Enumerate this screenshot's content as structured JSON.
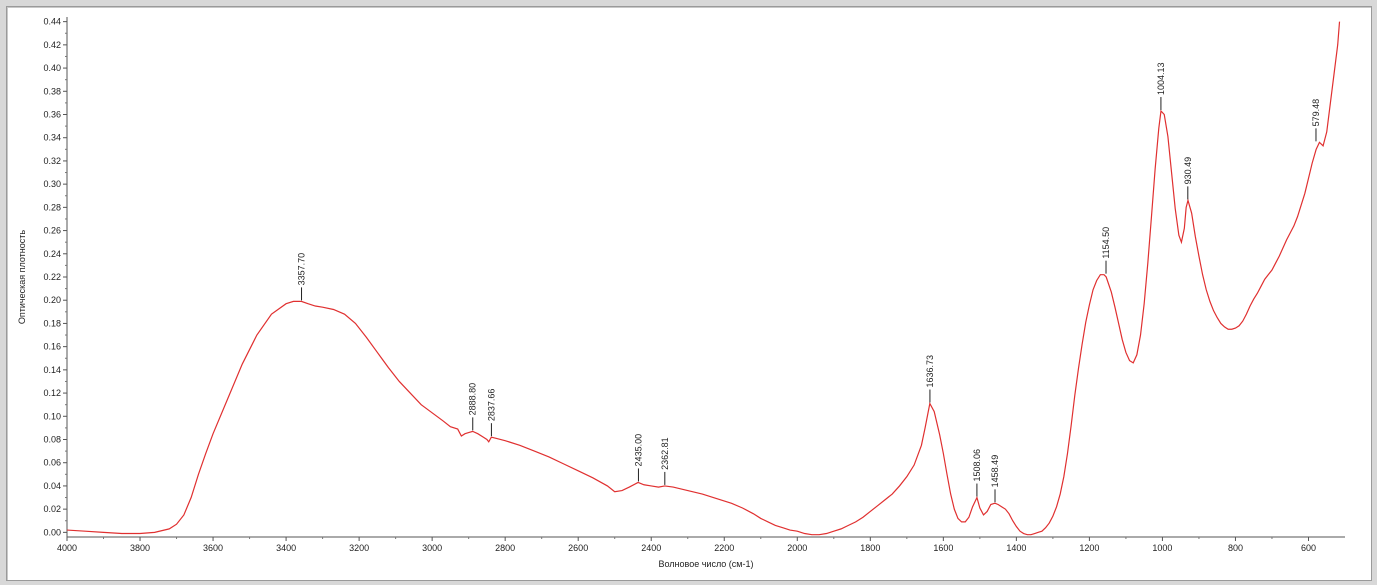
{
  "chart_data": {
    "type": "line",
    "xlabel": "Волновое число (см-1)",
    "ylabel": "Оптическая плотность",
    "xlim": [
      4000,
      500
    ],
    "ylim": [
      -0.004,
      0.444
    ],
    "x_ticks": [
      "4000",
      "3800",
      "3600",
      "3400",
      "3200",
      "3000",
      "2800",
      "2600",
      "2400",
      "2200",
      "2000",
      "1800",
      "1600",
      "1400",
      "1200",
      "1000",
      "800",
      "600"
    ],
    "y_ticks": [
      "0.00",
      "0.02",
      "0.04",
      "0.06",
      "0.08",
      "0.10",
      "0.12",
      "0.14",
      "0.16",
      "0.18",
      "0.20",
      "0.22",
      "0.24",
      "0.26",
      "0.28",
      "0.30",
      "0.32",
      "0.34",
      "0.36",
      "0.38",
      "0.40",
      "0.42",
      "0.44"
    ],
    "series_color": "#e03030",
    "series": [
      {
        "x": [
          4000,
          3950,
          3900,
          3850,
          3800,
          3760,
          3720,
          3700,
          3680,
          3660,
          3640,
          3620,
          3600,
          3560,
          3520,
          3480,
          3440,
          3400,
          3380,
          3358,
          3340,
          3320,
          3300,
          3270,
          3240,
          3210,
          3180,
          3150,
          3120,
          3090,
          3060,
          3030,
          3000,
          2970,
          2950,
          2930,
          2920,
          2910,
          2900,
          2889,
          2875,
          2860,
          2850,
          2845,
          2838,
          2825,
          2800,
          2760,
          2720,
          2680,
          2640,
          2600,
          2560,
          2520,
          2500,
          2480,
          2460,
          2436,
          2420,
          2400,
          2380,
          2363,
          2340,
          2300,
          2260,
          2220,
          2180,
          2150,
          2120,
          2100,
          2080,
          2060,
          2040,
          2020,
          2000,
          1980,
          1960,
          1940,
          1920,
          1900,
          1880,
          1860,
          1840,
          1820,
          1800,
          1780,
          1760,
          1740,
          1720,
          1700,
          1680,
          1660,
          1650,
          1637,
          1625,
          1610,
          1600,
          1590,
          1580,
          1570,
          1560,
          1550,
          1540,
          1530,
          1520,
          1508,
          1500,
          1490,
          1480,
          1470,
          1460,
          1458,
          1450,
          1440,
          1430,
          1420,
          1410,
          1400,
          1390,
          1380,
          1370,
          1360,
          1350,
          1340,
          1330,
          1320,
          1310,
          1300,
          1290,
          1280,
          1270,
          1260,
          1250,
          1240,
          1230,
          1220,
          1210,
          1200,
          1190,
          1180,
          1170,
          1160,
          1154,
          1140,
          1130,
          1120,
          1110,
          1100,
          1090,
          1080,
          1070,
          1060,
          1050,
          1040,
          1030,
          1020,
          1010,
          1004,
          995,
          985,
          975,
          965,
          955,
          948,
          940,
          935,
          930,
          920,
          910,
          900,
          890,
          880,
          870,
          860,
          850,
          840,
          830,
          820,
          810,
          800,
          790,
          780,
          770,
          760,
          750,
          740,
          730,
          720,
          710,
          700,
          690,
          680,
          670,
          660,
          650,
          640,
          630,
          620,
          610,
          600,
          590,
          579,
          570,
          560,
          550,
          540,
          530,
          520,
          515
        ],
        "y": [
          0.002,
          0.001,
          0.0,
          -0.001,
          -0.001,
          0.0,
          0.003,
          0.007,
          0.015,
          0.03,
          0.05,
          0.068,
          0.085,
          0.115,
          0.145,
          0.17,
          0.188,
          0.197,
          0.199,
          0.199,
          0.197,
          0.195,
          0.194,
          0.192,
          0.188,
          0.18,
          0.168,
          0.155,
          0.142,
          0.13,
          0.12,
          0.11,
          0.103,
          0.096,
          0.091,
          0.089,
          0.083,
          0.085,
          0.086,
          0.087,
          0.085,
          0.082,
          0.08,
          0.078,
          0.082,
          0.081,
          0.079,
          0.075,
          0.07,
          0.065,
          0.059,
          0.053,
          0.047,
          0.04,
          0.035,
          0.036,
          0.039,
          0.043,
          0.041,
          0.04,
          0.039,
          0.04,
          0.039,
          0.036,
          0.033,
          0.029,
          0.025,
          0.021,
          0.016,
          0.012,
          0.009,
          0.006,
          0.004,
          0.002,
          0.001,
          -0.001,
          -0.002,
          -0.002,
          -0.001,
          0.001,
          0.003,
          0.006,
          0.009,
          0.013,
          0.018,
          0.023,
          0.028,
          0.033,
          0.04,
          0.048,
          0.058,
          0.075,
          0.09,
          0.111,
          0.104,
          0.084,
          0.068,
          0.05,
          0.033,
          0.02,
          0.012,
          0.009,
          0.009,
          0.013,
          0.022,
          0.03,
          0.021,
          0.015,
          0.018,
          0.024,
          0.025,
          0.025,
          0.024,
          0.022,
          0.02,
          0.016,
          0.01,
          0.005,
          0.001,
          -0.001,
          -0.002,
          -0.002,
          -0.001,
          0.0,
          0.001,
          0.004,
          0.008,
          0.014,
          0.022,
          0.033,
          0.048,
          0.068,
          0.092,
          0.118,
          0.141,
          0.162,
          0.181,
          0.196,
          0.209,
          0.217,
          0.222,
          0.222,
          0.22,
          0.207,
          0.194,
          0.18,
          0.166,
          0.155,
          0.148,
          0.146,
          0.153,
          0.17,
          0.197,
          0.232,
          0.272,
          0.313,
          0.348,
          0.363,
          0.36,
          0.341,
          0.31,
          0.279,
          0.256,
          0.25,
          0.262,
          0.28,
          0.286,
          0.275,
          0.255,
          0.238,
          0.222,
          0.209,
          0.199,
          0.191,
          0.185,
          0.18,
          0.177,
          0.175,
          0.175,
          0.176,
          0.178,
          0.182,
          0.188,
          0.195,
          0.201,
          0.206,
          0.212,
          0.218,
          0.222,
          0.226,
          0.232,
          0.238,
          0.245,
          0.252,
          0.258,
          0.264,
          0.272,
          0.282,
          0.292,
          0.305,
          0.318,
          0.33,
          0.336,
          0.333,
          0.345,
          0.37,
          0.395,
          0.42,
          0.44
        ]
      }
    ],
    "peak_labels": [
      {
        "x": 3357.7,
        "y": 0.199,
        "label": "3357.70"
      },
      {
        "x": 2888.8,
        "y": 0.087,
        "label": "2888.80"
      },
      {
        "x": 2837.66,
        "y": 0.082,
        "label": "2837.66"
      },
      {
        "x": 2435.0,
        "y": 0.043,
        "label": "2435.00"
      },
      {
        "x": 2362.81,
        "y": 0.04,
        "label": "2362.81"
      },
      {
        "x": 1636.73,
        "y": 0.111,
        "label": "1636.73"
      },
      {
        "x": 1508.06,
        "y": 0.03,
        "label": "1508.06"
      },
      {
        "x": 1458.49,
        "y": 0.025,
        "label": "1458.49"
      },
      {
        "x": 1154.5,
        "y": 0.222,
        "label": "1154.50"
      },
      {
        "x": 1004.13,
        "y": 0.363,
        "label": "1004.13"
      },
      {
        "x": 930.49,
        "y": 0.286,
        "label": "930.49"
      },
      {
        "x": 579.48,
        "y": 0.336,
        "label": "579.48"
      }
    ],
    "grid": false,
    "legend": "none"
  }
}
